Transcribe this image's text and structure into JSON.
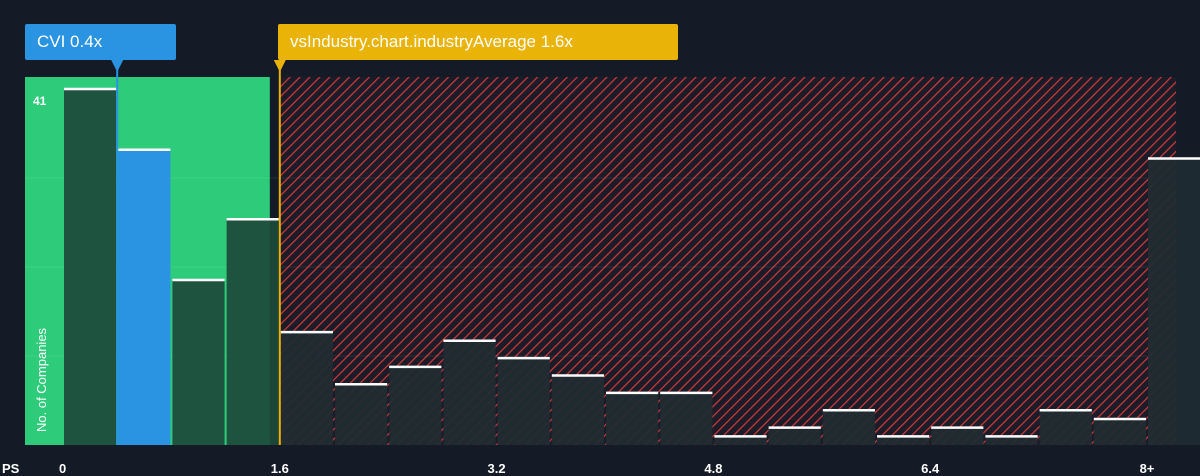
{
  "chart_data": {
    "type": "bar",
    "xlabel": "PS",
    "ylabel": "No. of Companies",
    "y_max_label": "41",
    "ylim": [
      0,
      41
    ],
    "x_ticks": [
      "0",
      "1.6",
      "3.2",
      "4.8",
      "6.4",
      "8+"
    ],
    "x_tick_values": [
      0,
      1.6,
      3.2,
      4.8,
      6.4,
      8
    ],
    "bin_width": 0.4,
    "bins": [
      {
        "x0": 0.0,
        "value": 41
      },
      {
        "x0": 0.4,
        "value": 34,
        "highlight": "company"
      },
      {
        "x0": 0.8,
        "value": 19
      },
      {
        "x0": 1.2,
        "value": 26
      },
      {
        "x0": 1.6,
        "value": 13
      },
      {
        "x0": 2.0,
        "value": 7
      },
      {
        "x0": 2.4,
        "value": 9
      },
      {
        "x0": 2.8,
        "value": 12
      },
      {
        "x0": 3.2,
        "value": 10
      },
      {
        "x0": 3.6,
        "value": 8
      },
      {
        "x0": 4.0,
        "value": 6
      },
      {
        "x0": 4.4,
        "value": 6
      },
      {
        "x0": 4.8,
        "value": 1
      },
      {
        "x0": 5.2,
        "value": 2
      },
      {
        "x0": 5.6,
        "value": 4
      },
      {
        "x0": 6.0,
        "value": 1
      },
      {
        "x0": 6.4,
        "value": 2
      },
      {
        "x0": 6.8,
        "value": 1
      },
      {
        "x0": 7.2,
        "value": 4
      },
      {
        "x0": 7.6,
        "value": 3
      },
      {
        "x0": 8.0,
        "value": 33
      }
    ],
    "company": {
      "label": "CVI 0.4x",
      "value": 0.4
    },
    "industry_average": {
      "label": "vsIndustry.chart.industryAverage 1.6x",
      "value": 1.6
    },
    "colors": {
      "background": "#151b26",
      "fair_zone": "#2ecc7a",
      "company": "#2a93e2",
      "industry": "#eab308",
      "expensive_hatch": "#d23a3a",
      "bar": "#1f2b32",
      "bar_green": "#1d4a3a",
      "bar_top": "#ffffff"
    }
  }
}
